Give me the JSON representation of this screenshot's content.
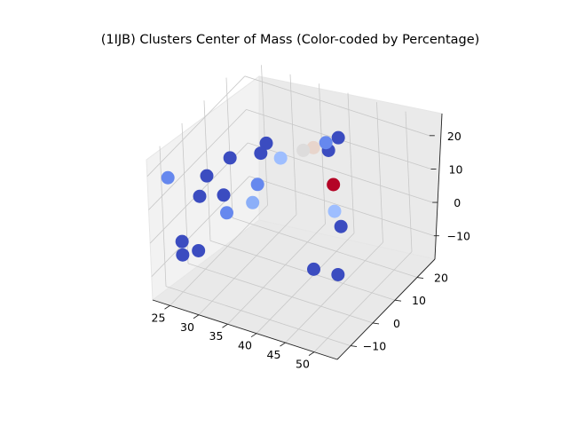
{
  "chart_data": {
    "type": "scatter",
    "projection": "3d",
    "title": "(1IJB) Clusters Center of Mass (Color-coded by Percentage)",
    "xlabel": "",
    "ylabel": "",
    "zlabel": "",
    "x_ticks": [
      "25",
      "30",
      "35",
      "40",
      "45",
      "50"
    ],
    "y_ticks": [
      "−10",
      "0",
      "10",
      "20"
    ],
    "z_ticks": [
      "−10",
      "0",
      "10",
      "20"
    ],
    "grid": true,
    "colormap": "coolwarm",
    "legend": "none",
    "points": [
      {
        "x": 24,
        "y": -12,
        "z": 18,
        "color": "#6688ee"
      },
      {
        "x": 31,
        "y": -2,
        "z": 21,
        "color": "#3b4cc0"
      },
      {
        "x": 28,
        "y": -5,
        "z": 16,
        "color": "#3b4cc0"
      },
      {
        "x": 34,
        "y": 4,
        "z": 20,
        "color": "#3b4cc0"
      },
      {
        "x": 33,
        "y": 9,
        "z": 19,
        "color": "#3b4cc0"
      },
      {
        "x": 34,
        "y": 2,
        "z": 12,
        "color": "#6688ee"
      },
      {
        "x": 35,
        "y": 10,
        "z": 15,
        "color": "#9ebeff"
      },
      {
        "x": 37,
        "y": 15,
        "z": 15,
        "color": "#dddcdc"
      },
      {
        "x": 38,
        "y": 17,
        "z": 15,
        "color": "#e8d5cc"
      },
      {
        "x": 39,
        "y": 20,
        "z": 15,
        "color": "#6688ee"
      },
      {
        "x": 40,
        "y": 23,
        "z": 15,
        "color": "#3b4cc0"
      },
      {
        "x": 39,
        "y": 21,
        "z": 12,
        "color": "#3b4cc0"
      },
      {
        "x": 27,
        "y": -6,
        "z": 10,
        "color": "#3b4cc0"
      },
      {
        "x": 30,
        "y": -3,
        "z": 10,
        "color": "#3b4cc0"
      },
      {
        "x": 30,
        "y": -2,
        "z": 4,
        "color": "#6688ee"
      },
      {
        "x": 33,
        "y": 2,
        "z": 6,
        "color": "#8caff8"
      },
      {
        "x": 40,
        "y": 20,
        "z": 3,
        "color": "#b40426"
      },
      {
        "x": 40,
        "y": 20,
        "z": -5,
        "color": "#9ebeff"
      },
      {
        "x": 41,
        "y": 20,
        "z": -9,
        "color": "#3b4cc0"
      },
      {
        "x": 26,
        "y": -12,
        "z": 0,
        "color": "#3b4cc0"
      },
      {
        "x": 26,
        "y": -12,
        "z": -4,
        "color": "#3b4cc0"
      },
      {
        "x": 28,
        "y": -10,
        "z": -3,
        "color": "#3b4cc0"
      },
      {
        "x": 42,
        "y": 5,
        "z": -11,
        "color": "#3b4cc0"
      },
      {
        "x": 45,
        "y": 8,
        "z": -13,
        "color": "#3b4cc0"
      }
    ]
  }
}
